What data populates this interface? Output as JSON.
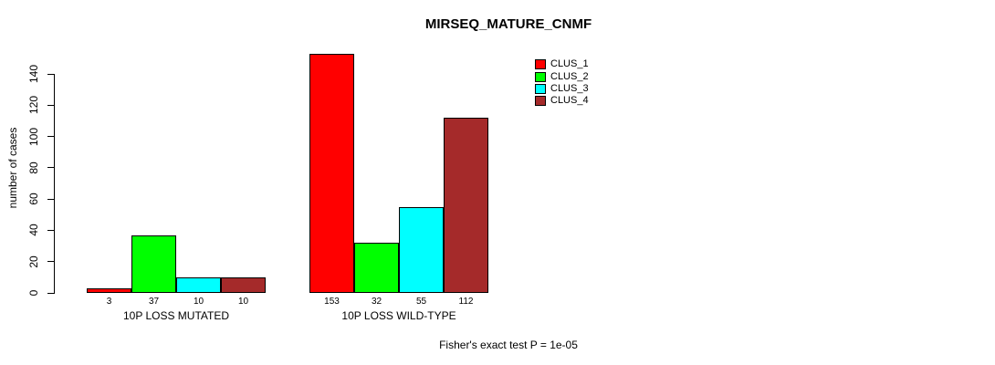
{
  "title": "MIRSEQ_MATURE_CNMF",
  "y_axis_label": "number of cases",
  "footer_annotation": "Fisher's exact test P = 1e-05",
  "chart_data": {
    "type": "bar",
    "title": "MIRSEQ_MATURE_CNMF",
    "xlabel": "",
    "ylabel": "number of cases",
    "categories": [
      "10P LOSS MUTATED",
      "10P LOSS WILD-TYPE"
    ],
    "series": [
      {
        "name": "CLUS_1",
        "color": "#FF0000",
        "values": [
          3,
          153
        ]
      },
      {
        "name": "CLUS_2",
        "color": "#00FF00",
        "values": [
          37,
          32
        ]
      },
      {
        "name": "CLUS_3",
        "color": "#00FFFF",
        "values": [
          10,
          55
        ]
      },
      {
        "name": "CLUS_4",
        "color": "#A52A2A",
        "values": [
          10,
          112
        ]
      }
    ],
    "bar_value_labels_shown": true,
    "yticks": [
      0,
      20,
      40,
      60,
      80,
      100,
      120,
      140
    ],
    "ylim": [
      0,
      159
    ],
    "grid": false,
    "legend_position": "top-right",
    "annotation": "Fisher's exact test P = 1e-05"
  }
}
